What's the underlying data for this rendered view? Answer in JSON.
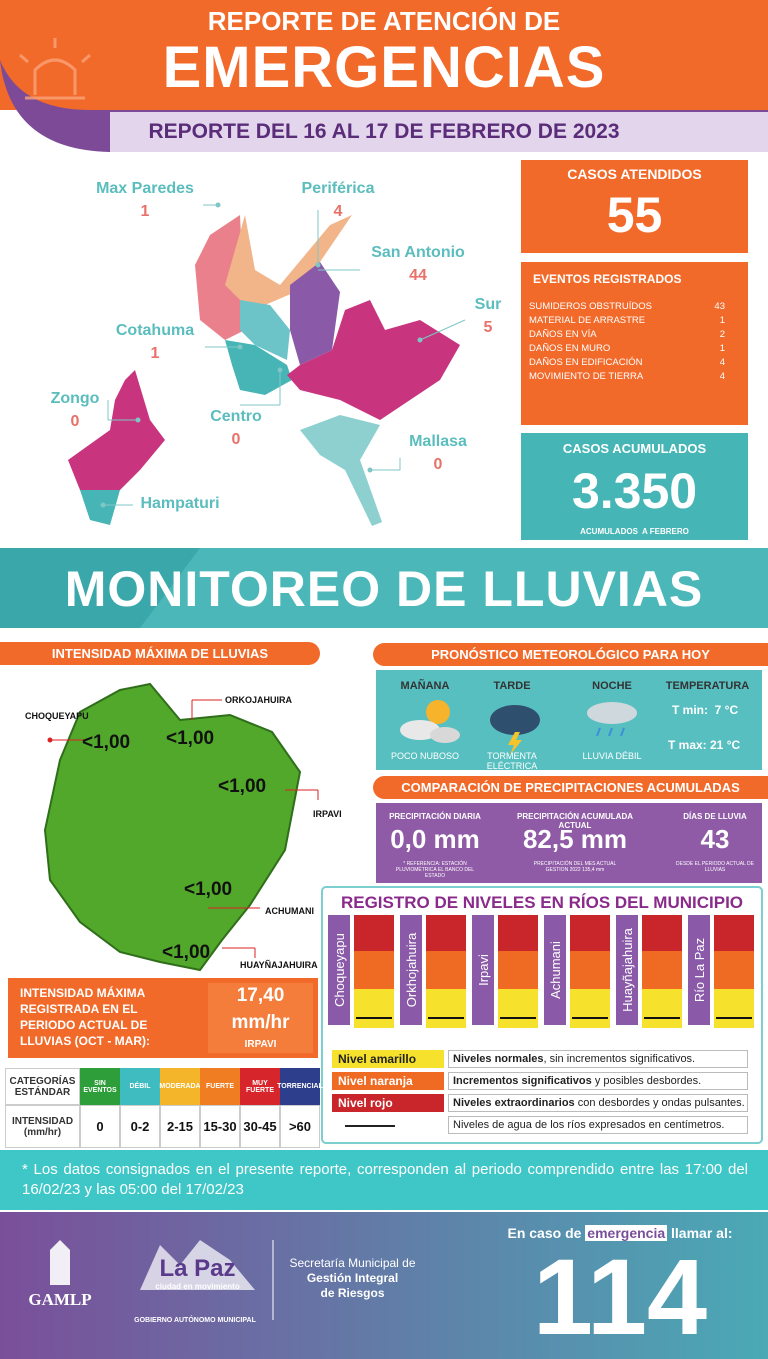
{
  "header": {
    "kicker": "REPORTE DE ATENCIÓN DE",
    "title": "EMERGENCIAS",
    "date_range": "REPORTE DEL 16 AL 17 DE FEBRERO DE 2023"
  },
  "districts": [
    {
      "name": "Max Paredes",
      "count": 1
    },
    {
      "name": "Periférica",
      "count": 4
    },
    {
      "name": "San Antonio",
      "count": 44
    },
    {
      "name": "Sur",
      "count": 5
    },
    {
      "name": "Cotahuma",
      "count": 1
    },
    {
      "name": "Zongo",
      "count": 0
    },
    {
      "name": "Centro",
      "count": 0
    },
    {
      "name": "Mallasa",
      "count": 0
    },
    {
      "name": "Hampaturi"
    }
  ],
  "cases": {
    "title": "CASOS ATENDIDOS",
    "value": 55
  },
  "events": {
    "title": "EVENTOS REGISTRADOS",
    "rows": [
      {
        "label": "SUMIDEROS OBSTRUÍDOS",
        "count": 43
      },
      {
        "label": "MATERIAL DE ARRASTRE",
        "count": 1
      },
      {
        "label": "DAÑOS EN VÍA",
        "count": 2
      },
      {
        "label": "DAÑOS EN MURO",
        "count": 1
      },
      {
        "label": "DAÑOS EN EDIFICACIÓN",
        "count": 4
      },
      {
        "label": "MOVIMIENTO DE TIERRA",
        "count": 4
      }
    ]
  },
  "accumulated": {
    "title": "CASOS ACUMULADOS",
    "value": "3.350",
    "note": "ACUMULADOS  A FEBRERO"
  },
  "rain": {
    "title": "MONITOREO DE LLUVIAS",
    "intensity": {
      "title": "INTENSIDAD MÁXIMA DE LLUVIAS",
      "stations": [
        {
          "name": "CHOQUEYAPU",
          "value": "<1,00"
        },
        {
          "name": "ORKOJAHUIRA",
          "value": "<1,00"
        },
        {
          "name": "IRPAVI",
          "value": "<1,00"
        },
        {
          "name": "ACHUMANI",
          "value": "<1,00"
        },
        {
          "name": "HUAYÑAJAHUIRA",
          "value": "<1,00"
        }
      ]
    },
    "max": {
      "label": "INTENSIDAD MÁXIMA REGISTRADA EN EL PERIODO ACTUAL DE LLUVIAS (OCT - MAR):",
      "value": "17,40",
      "unit": "mm/hr",
      "station": "IRPAVI"
    },
    "categories": {
      "header": "CATEGORÍAS ESTÁNDAR",
      "row_label": "INTENSIDAD (mm/hr)",
      "columns": [
        {
          "name": "SIN EVENTOS",
          "range": "0"
        },
        {
          "name": "DÉBIL",
          "range": "0-2"
        },
        {
          "name": "MODERADA",
          "range": "2-15"
        },
        {
          "name": "FUERTE",
          "range": "15-30"
        },
        {
          "name": "MUY FUERTE",
          "range": "30-45"
        },
        {
          "name": "TORRENCIAL",
          "range": ">60"
        }
      ]
    }
  },
  "forecast": {
    "title": "PRONÓSTICO METEOROLÓGICO PARA HOY",
    "periods": [
      {
        "period": "MAÑANA",
        "desc": "POCO NUBOSO"
      },
      {
        "period": "TARDE",
        "desc": "TORMENTA ELÉCTRICA"
      },
      {
        "period": "NOCHE",
        "desc": "LLUVIA DÉBIL"
      }
    ],
    "temperature": {
      "title": "TEMPERATURA",
      "min": "T min:  7 °C",
      "max": "T max: 21 °C"
    }
  },
  "comparison": {
    "title": "COMPARACIÓN DE PRECIPITACIONES ACUMULADAS",
    "items": [
      {
        "label": "PRECIPITACIÓN DIARIA",
        "value": "0,0 mm",
        "note": "* REFERENCIA: ESTACIÓN PLUVIOMÉTRICA EL BANCO DEL ESTADO"
      },
      {
        "label": "PRECIPITACIÓN ACUMULADA ACTUAL",
        "value": "82,5 mm",
        "note": "PRECIPITACIÓN DEL MES ACTUAL GESTION 2022 135,4 mm"
      },
      {
        "label": "DÍAS DE LLUVIA",
        "value": "43",
        "note": "DESDE EL PERIODO ACTUAL DE LLUVIAS"
      }
    ]
  },
  "rivers": {
    "title": "REGISTRO DE NIVELES EN RÍOS DEL MUNICIPIO",
    "names": [
      "Choqueyapu",
      "Orkhojahuira",
      "Irpavi",
      "Achumani",
      "Huayñajahuira",
      "Río La Paz"
    ],
    "legend": [
      {
        "label": "Nivel amarillo",
        "bold": "Niveles normales",
        "text": ", sin incrementos significativos."
      },
      {
        "label": "Nivel naranja",
        "bold": "Incrementos significativos",
        "text": " y posibles desbordes."
      },
      {
        "label": "Nivel rojo",
        "bold": "Niveles extraordinarios",
        "text": " con desbordes y ondas pulsantes."
      },
      {
        "bold": "",
        "text": "Niveles de agua de los ríos expresados en centímetros."
      }
    ]
  },
  "footnote": "* Los datos consignados en el presente reporte, corresponden al periodo comprendido entre las 17:00 del 16/02/23 y las 05:00 del 17/02/23",
  "footer": {
    "gamlp": "GAMLP",
    "brand": "La Paz",
    "brand_sub": "ciudad en movimiento",
    "government": "GOBIERNO AUTÓNOMO MUNICIPAL",
    "secretaria": [
      "Secretaría Municipal de",
      "Gestión Integral",
      "de Riesgos"
    ],
    "call_pre": "En caso de",
    "call_word": "emergencia",
    "call_post": "llamar al:",
    "number": "114"
  }
}
